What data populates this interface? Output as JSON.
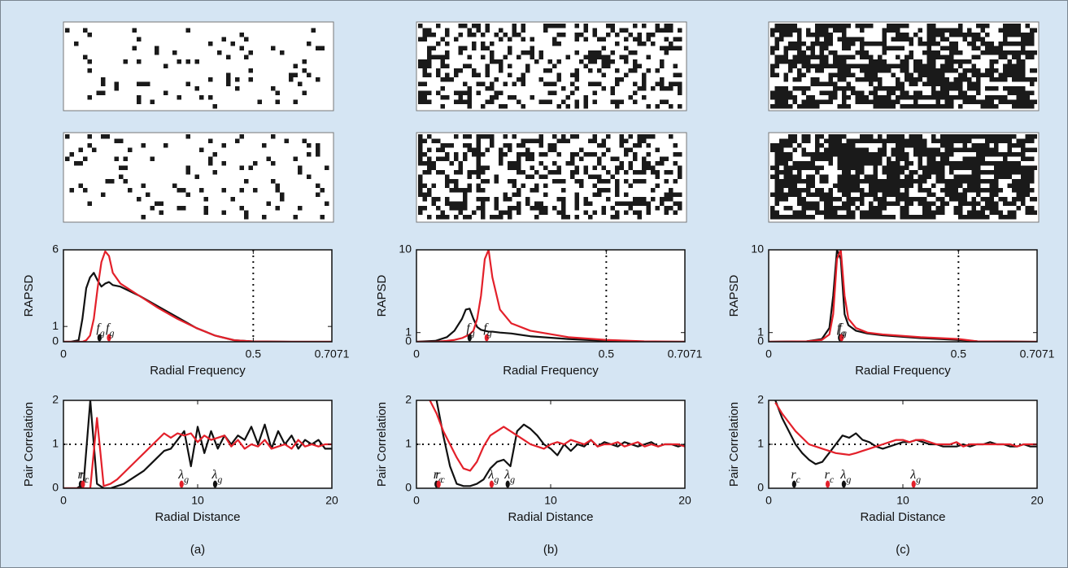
{
  "panel_labels": [
    "(a)",
    "(b)",
    "(c)"
  ],
  "chart_data": [
    {
      "type": "line",
      "x_label": "Radial Frequency",
      "y_label": "RAPSD",
      "xlim": [
        0,
        0.7071
      ],
      "ylim": [
        0,
        6
      ],
      "xticks": [
        0,
        0.5,
        0.7071
      ],
      "yticks": [
        0,
        1,
        6
      ],
      "reference_x": 0.5,
      "x": [
        0,
        0.02,
        0.04,
        0.05,
        0.06,
        0.07,
        0.08,
        0.09,
        0.1,
        0.11,
        0.12,
        0.13,
        0.15,
        0.2,
        0.25,
        0.3,
        0.35,
        0.4,
        0.45,
        0.5,
        0.6,
        0.7071
      ],
      "series": [
        {
          "color": "#111111",
          "values": [
            0,
            0,
            0.1,
            1.5,
            3.5,
            4.2,
            4.5,
            4.0,
            3.6,
            3.8,
            3.9,
            3.7,
            3.6,
            3.0,
            2.3,
            1.6,
            0.9,
            0.4,
            0.1,
            0.02,
            0,
            0
          ]
        },
        {
          "color": "#e3202a",
          "values": [
            0,
            0,
            0,
            0,
            0.1,
            0.4,
            1.5,
            3.5,
            5.2,
            5.9,
            5.6,
            4.5,
            3.8,
            3.0,
            2.2,
            1.5,
            0.9,
            0.4,
            0.1,
            0.02,
            0,
            0
          ]
        }
      ],
      "annotations": [
        {
          "symbol": "f",
          "subscript": "g",
          "x": 0.095,
          "color": "#111111"
        },
        {
          "symbol": "f",
          "subscript": "g",
          "x": 0.12,
          "color": "#e3202a"
        }
      ]
    },
    {
      "type": "line",
      "x_label": "Radial Frequency",
      "y_label": "RAPSD",
      "xlim": [
        0,
        0.7071
      ],
      "ylim": [
        0,
        10
      ],
      "xticks": [
        0,
        0.5,
        0.7071
      ],
      "yticks": [
        0,
        1,
        10
      ],
      "reference_x": 0.5,
      "x": [
        0,
        0.05,
        0.08,
        0.1,
        0.12,
        0.13,
        0.14,
        0.15,
        0.16,
        0.17,
        0.18,
        0.19,
        0.2,
        0.22,
        0.25,
        0.3,
        0.4,
        0.5,
        0.6,
        0.7071
      ],
      "series": [
        {
          "color": "#111111",
          "values": [
            0,
            0.1,
            0.5,
            1.2,
            2.5,
            3.5,
            3.6,
            2.5,
            1.6,
            1.3,
            1.2,
            1.1,
            1.1,
            1.0,
            0.9,
            0.6,
            0.3,
            0.1,
            0,
            0
          ]
        },
        {
          "color": "#e3202a",
          "values": [
            0,
            0,
            0.1,
            0.2,
            0.4,
            0.6,
            0.8,
            1.2,
            2.5,
            5,
            9,
            10,
            7,
            3.5,
            2.0,
            1.2,
            0.5,
            0.2,
            0.05,
            0
          ]
        }
      ],
      "annotations": [
        {
          "symbol": "f",
          "subscript": "g",
          "x": 0.14,
          "color": "#111111"
        },
        {
          "symbol": "f",
          "subscript": "g",
          "x": 0.185,
          "color": "#e3202a"
        }
      ]
    },
    {
      "type": "line",
      "x_label": "Radial Frequency",
      "y_label": "RAPSD",
      "xlim": [
        0,
        0.7071
      ],
      "ylim": [
        0,
        10
      ],
      "xticks": [
        0,
        0.5,
        0.7071
      ],
      "yticks": [
        0,
        1,
        10
      ],
      "reference_x": 0.5,
      "x": [
        0,
        0.1,
        0.14,
        0.16,
        0.17,
        0.18,
        0.19,
        0.2,
        0.21,
        0.23,
        0.26,
        0.3,
        0.4,
        0.5,
        0.55,
        0.7071
      ],
      "series": [
        {
          "color": "#111111",
          "values": [
            0,
            0.05,
            0.3,
            1.5,
            5,
            10,
            9,
            3,
            1.8,
            1.2,
            0.9,
            0.7,
            0.4,
            0.2,
            0.05,
            0
          ]
        },
        {
          "color": "#e3202a",
          "values": [
            0,
            0.05,
            0.2,
            0.8,
            3,
            9,
            10,
            5,
            2.5,
            1.5,
            1.0,
            0.8,
            0.5,
            0.3,
            0.05,
            0
          ]
        }
      ],
      "annotations": [
        {
          "symbol": "f",
          "subscript": "g",
          "x": 0.188,
          "color": "#111111"
        },
        {
          "symbol": "f",
          "subscript": "g",
          "x": 0.192,
          "color": "#e3202a"
        }
      ]
    },
    {
      "type": "line",
      "x_label": "Radial Distance",
      "y_label": "Pair Correlation",
      "xlim": [
        0,
        20
      ],
      "ylim": [
        0,
        2
      ],
      "xticks": [
        0,
        10,
        20
      ],
      "yticks": [
        0,
        1,
        2
      ],
      "reference_y": 1,
      "x": [
        0,
        0.5,
        1,
        1.5,
        2,
        2.5,
        3,
        3.5,
        4,
        4.5,
        5,
        5.5,
        6,
        6.5,
        7,
        7.5,
        8,
        8.5,
        9,
        9.5,
        10,
        10.5,
        11,
        11.5,
        12,
        12.5,
        13,
        13.5,
        14,
        14.5,
        15,
        15.5,
        16,
        16.5,
        17,
        17.5,
        18,
        18.5,
        19,
        19.5,
        20
      ],
      "series": [
        {
          "color": "#111111",
          "values": [
            0,
            0,
            0,
            0.1,
            2.0,
            0.1,
            0,
            0,
            0.05,
            0.1,
            0.2,
            0.3,
            0.4,
            0.55,
            0.7,
            0.85,
            0.9,
            1.1,
            1.3,
            0.5,
            1.4,
            0.8,
            1.3,
            0.9,
            1.2,
            1.0,
            1.2,
            1.1,
            1.4,
            1.0,
            1.45,
            0.9,
            1.3,
            1.0,
            1.2,
            0.9,
            1.1,
            1.0,
            1.1,
            0.9,
            0.9
          ]
        },
        {
          "color": "#e3202a",
          "values": [
            0,
            0,
            0,
            0,
            0,
            1.6,
            0.05,
            0.1,
            0.2,
            0.35,
            0.5,
            0.65,
            0.8,
            0.95,
            1.1,
            1.25,
            1.15,
            1.25,
            1.2,
            1.25,
            1.05,
            1.2,
            1.1,
            1.15,
            1.2,
            0.95,
            1.1,
            0.9,
            1.0,
            0.95,
            1.1,
            0.9,
            0.95,
            1.0,
            0.9,
            1.1,
            0.95,
            1.0,
            0.95,
            1.0,
            1.0
          ]
        }
      ],
      "annotations": [
        {
          "symbol": "r",
          "subscript": "c",
          "x": 1.3,
          "color": "#111111"
        },
        {
          "symbol": "r",
          "subscript": "c",
          "x": 1.45,
          "color": "#e3202a"
        },
        {
          "symbol": "λ",
          "subscript": "g",
          "x": 8.8,
          "color": "#e3202a"
        },
        {
          "symbol": "λ",
          "subscript": "g",
          "x": 11.3,
          "color": "#111111"
        }
      ]
    },
    {
      "type": "line",
      "x_label": "Radial Distance",
      "y_label": "Pair Correlation",
      "xlim": [
        0,
        20
      ],
      "ylim": [
        0,
        2
      ],
      "xticks": [
        0,
        10,
        20
      ],
      "yticks": [
        0,
        1,
        2
      ],
      "reference_y": 1,
      "x": [
        0,
        0.5,
        1,
        1.5,
        2,
        2.5,
        3,
        3.5,
        4,
        4.5,
        5,
        5.5,
        6,
        6.5,
        7,
        7.5,
        8,
        8.5,
        9,
        9.5,
        10,
        10.5,
        11,
        11.5,
        12,
        12.5,
        13,
        13.5,
        14,
        14.5,
        15,
        15.5,
        16,
        16.5,
        17,
        17.5,
        18,
        18.5,
        19,
        19.5,
        20
      ],
      "series": [
        {
          "color": "#111111",
          "values": [
            null,
            null,
            null,
            2.0,
            1.2,
            0.5,
            0.1,
            0.05,
            0.05,
            0.1,
            0.2,
            0.45,
            0.6,
            0.65,
            0.5,
            1.3,
            1.45,
            1.35,
            1.2,
            1.0,
            0.9,
            0.75,
            1.0,
            0.85,
            1.0,
            0.95,
            1.1,
            0.95,
            1.05,
            1.0,
            0.95,
            1.05,
            1.0,
            0.95,
            1.0,
            1.05,
            0.95,
            1.0,
            1.0,
            0.95,
            1.0
          ]
        },
        {
          "color": "#e3202a",
          "values": [
            null,
            null,
            2.0,
            1.7,
            1.3,
            1.0,
            0.7,
            0.45,
            0.4,
            0.6,
            0.95,
            1.2,
            1.3,
            1.4,
            1.3,
            1.2,
            1.1,
            1.0,
            0.95,
            0.9,
            1.0,
            1.05,
            1.0,
            1.1,
            1.05,
            1.0,
            1.1,
            0.95,
            1.0,
            1.0,
            1.05,
            0.95,
            1.0,
            1.05,
            0.95,
            1.0,
            0.95,
            1.0,
            1.0,
            1.0,
            0.95
          ]
        }
      ],
      "annotations": [
        {
          "symbol": "r",
          "subscript": "c",
          "x": 1.5,
          "color": "#111111"
        },
        {
          "symbol": "r",
          "subscript": "c",
          "x": 1.65,
          "color": "#e3202a"
        },
        {
          "symbol": "λ",
          "subscript": "g",
          "x": 5.6,
          "color": "#e3202a"
        },
        {
          "symbol": "λ",
          "subscript": "g",
          "x": 6.8,
          "color": "#111111"
        }
      ]
    },
    {
      "type": "line",
      "x_label": "Radial Distance",
      "y_label": "Pair Correlation",
      "xlim": [
        0,
        20
      ],
      "ylim": [
        0,
        2
      ],
      "xticks": [
        0,
        10,
        20
      ],
      "yticks": [
        0,
        1,
        2
      ],
      "reference_y": 1,
      "x": [
        0,
        0.5,
        1,
        1.5,
        2,
        2.5,
        3,
        3.5,
        4,
        4.5,
        5,
        5.5,
        6,
        6.5,
        7,
        7.5,
        8,
        8.5,
        9,
        9.5,
        10,
        10.5,
        11,
        11.5,
        12,
        12.5,
        13,
        13.5,
        14,
        14.5,
        15,
        15.5,
        16,
        16.5,
        17,
        17.5,
        18,
        18.5,
        19,
        19.5,
        20
      ],
      "series": [
        {
          "color": "#111111",
          "values": [
            null,
            2.0,
            1.6,
            1.3,
            1.0,
            0.8,
            0.65,
            0.55,
            0.6,
            0.8,
            1.0,
            1.2,
            1.15,
            1.25,
            1.1,
            1.05,
            0.95,
            0.9,
            0.95,
            1.0,
            1.05,
            1.05,
            1.1,
            1.05,
            1.0,
            1.0,
            0.95,
            0.95,
            0.95,
            1.0,
            0.95,
            1.0,
            1.0,
            1.05,
            1.0,
            1.0,
            0.95,
            0.95,
            1.0,
            0.95,
            0.95
          ]
        },
        {
          "color": "#e3202a",
          "values": [
            null,
            1.95,
            1.7,
            1.5,
            1.3,
            1.15,
            1.0,
            0.95,
            0.9,
            0.85,
            0.8,
            0.78,
            0.76,
            0.8,
            0.85,
            0.9,
            0.95,
            1.0,
            1.05,
            1.1,
            1.1,
            1.05,
            1.1,
            1.1,
            1.05,
            1.0,
            1.0,
            1.0,
            1.05,
            0.95,
            1.0,
            1.0,
            1.0,
            1.0,
            1.0,
            1.0,
            1.0,
            0.95,
            1.0,
            1.0,
            1.0
          ]
        }
      ],
      "annotations": [
        {
          "symbol": "r",
          "subscript": "c",
          "x": 1.9,
          "color": "#111111"
        },
        {
          "symbol": "r",
          "subscript": "c",
          "x": 4.4,
          "color": "#e3202a"
        },
        {
          "symbol": "λ",
          "subscript": "g",
          "x": 5.6,
          "color": "#111111"
        },
        {
          "symbol": "λ",
          "subscript": "g",
          "x": 10.8,
          "color": "#e3202a"
        }
      ]
    }
  ]
}
